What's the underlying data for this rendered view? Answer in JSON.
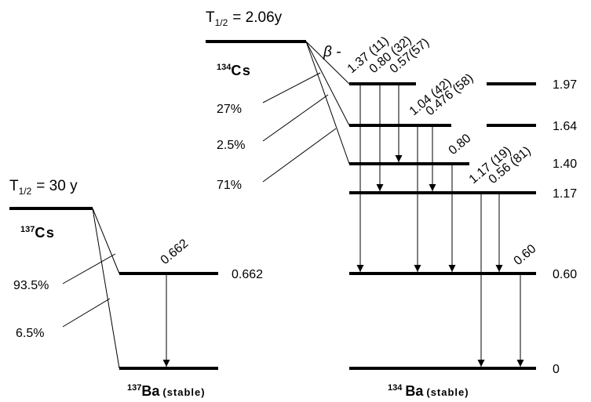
{
  "cs137": {
    "half_life_prefix": "T",
    "half_life_sub": "1/2",
    "half_life_value": "= 30 y",
    "parent_mass": "137",
    "parent_symbol": "Cs",
    "branches": [
      "93.5%",
      "6.5%"
    ],
    "gamma": "0.662",
    "level_0662": "0.662",
    "daughter_mass": "137",
    "daughter_symbol": "Ba",
    "daughter_note": "(stable)"
  },
  "cs134": {
    "half_life_prefix": "T",
    "half_life_sub": "1/2",
    "half_life_value": "= 2.06y",
    "parent_mass": "134",
    "parent_symbol": "Cs",
    "beta_label": "β -",
    "branches": [
      "27%",
      "2.5%",
      "71%"
    ],
    "levels": [
      "1.97",
      "1.64",
      "1.40",
      "1.17",
      "0.60",
      "0"
    ],
    "gammas": [
      "1.37 (11)",
      "0.80 (32)",
      "0.57(57)",
      "1.04 (42)",
      "0.476 (58)",
      "0.80",
      "1.17 (19)",
      "0.56 (81)",
      "0.60"
    ],
    "daughter_mass": "134",
    "daughter_symbol": "Ba",
    "daughter_note": "(stable)"
  }
}
